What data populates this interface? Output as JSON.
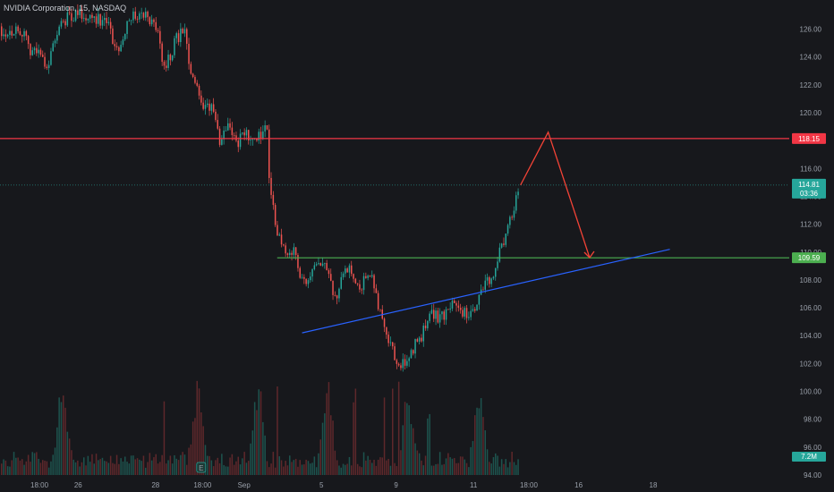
{
  "header": {
    "symbol": "NVIDIA Corporation",
    "interval": "15",
    "exchange": "NASDAQ"
  },
  "colors": {
    "background": "#17181c",
    "up": "#26a69a",
    "down": "#ef5350",
    "resistance_line": "#f23645",
    "support_line": "#4caf50",
    "trendline": "#2962ff",
    "projection": "#f44336",
    "axis_text": "#9aa0aa"
  },
  "chart_data": {
    "type": "candlestick",
    "ylim": [
      94,
      127
    ],
    "y_ticks": [
      "126.00",
      "124.00",
      "122.00",
      "120.00",
      "118.00",
      "116.00",
      "114.00",
      "112.00",
      "110.00",
      "108.00",
      "106.00",
      "104.00",
      "102.00",
      "100.00",
      "98.00",
      "96.00",
      "94.00"
    ],
    "x_ticks": [
      {
        "label": "18:00",
        "t": 1.7
      },
      {
        "label": "26",
        "t": 3.1
      },
      {
        "label": "28",
        "t": 5.9
      },
      {
        "label": "18:00",
        "t": 7.6
      },
      {
        "label": "Sep",
        "t": 9.1
      },
      {
        "label": "5",
        "t": 11.9
      },
      {
        "label": "9",
        "t": 14.6
      },
      {
        "label": "11",
        "t": 17.4
      },
      {
        "label": "18:00",
        "t": 19.4
      },
      {
        "label": "16",
        "t": 21.2
      },
      {
        "label": "18",
        "t": 23.9
      }
    ],
    "price_path": [
      [
        0.0,
        126.2
      ],
      [
        0.5,
        125.8
      ],
      [
        1.0,
        126.0
      ],
      [
        1.3,
        124.6
      ],
      [
        1.7,
        124.2
      ],
      [
        2.0,
        123.4
      ],
      [
        2.4,
        126.5
      ],
      [
        3.0,
        127.1
      ],
      [
        3.5,
        127.0
      ],
      [
        4.1,
        126.5
      ],
      [
        4.5,
        124.3
      ],
      [
        4.9,
        126.9
      ],
      [
        5.5,
        127.0
      ],
      [
        5.9,
        126.2
      ],
      [
        6.2,
        123.0
      ],
      [
        6.6,
        125.2
      ],
      [
        6.9,
        126.0
      ],
      [
        7.2,
        122.5
      ],
      [
        7.5,
        120.8
      ],
      [
        7.9,
        120.5
      ],
      [
        8.2,
        118.0
      ],
      [
        8.5,
        119.5
      ],
      [
        8.8,
        117.8
      ],
      [
        9.1,
        118.5
      ],
      [
        9.4,
        118.1
      ],
      [
        9.7,
        118.6
      ],
      [
        9.9,
        119.3
      ],
      [
        9.95,
        116.1
      ],
      [
        10.2,
        112.0
      ],
      [
        10.6,
        110.0
      ],
      [
        10.9,
        110.0
      ],
      [
        11.1,
        108.6
      ],
      [
        11.4,
        107.6
      ],
      [
        11.6,
        108.6
      ],
      [
        11.9,
        109.3
      ],
      [
        12.1,
        108.3
      ],
      [
        12.4,
        106.8
      ],
      [
        12.7,
        109.2
      ],
      [
        13.0,
        108.5
      ],
      [
        13.3,
        107.6
      ],
      [
        13.5,
        108.3
      ],
      [
        13.8,
        107.8
      ],
      [
        14.0,
        105.5
      ],
      [
        14.3,
        103.4
      ],
      [
        14.6,
        102.2
      ],
      [
        15.0,
        102.0
      ],
      [
        15.2,
        103.2
      ],
      [
        15.5,
        103.9
      ],
      [
        15.8,
        105.8
      ],
      [
        16.2,
        105.2
      ],
      [
        16.6,
        106.2
      ],
      [
        17.0,
        105.6
      ],
      [
        17.2,
        105.4
      ],
      [
        17.4,
        106.0
      ],
      [
        17.7,
        107.5
      ],
      [
        17.9,
        108.0
      ],
      [
        18.1,
        107.8
      ],
      [
        18.3,
        109.8
      ],
      [
        18.5,
        111.0
      ],
      [
        18.8,
        113.0
      ],
      [
        19.0,
        114.4
      ],
      [
        19.1,
        114.81
      ]
    ],
    "volume_peaks": [
      2.5,
      7.4,
      9.6,
      12.1,
      15.0,
      17.6
    ],
    "last_candle_t": 19.1,
    "horizontal_lines": [
      {
        "name": "resistance",
        "price": 118.15,
        "label": "118.15",
        "from_t": 0
      },
      {
        "name": "support",
        "price": 109.59,
        "label": "109.59",
        "from_t": 10.3
      }
    ],
    "current_price": {
      "price": 114.81,
      "label": "114.81",
      "countdown": "03:36"
    },
    "trendline": {
      "start": [
        11.2,
        104.2
      ],
      "end": [
        24.5,
        110.2
      ]
    },
    "projection": [
      [
        19.1,
        114.81
      ],
      [
        20.1,
        118.6
      ],
      [
        21.6,
        109.6
      ]
    ],
    "volume_label": "7.2M",
    "earnings_marker": "E",
    "earnings_t": 7.55
  }
}
